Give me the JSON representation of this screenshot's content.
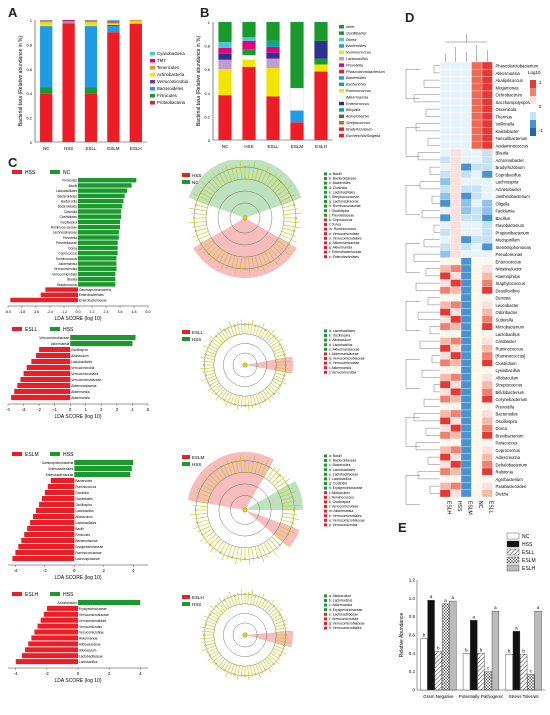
{
  "panel_letters": {
    "a": "A",
    "b": "B",
    "c": "C",
    "d": "D",
    "e": "E"
  },
  "colors": {
    "red": "#ee1c24",
    "green": "#1a9a2c",
    "blue": "#1e9ce6",
    "yellow": "#f2e600",
    "pink_red": "#f4a6a6",
    "pink_green": "#a8d8a8"
  },
  "chart_data": [
    {
      "id": "A",
      "type": "bar",
      "stacked": true,
      "ylabel": "Bacterial taxa (Relative abundance in %)",
      "categories": [
        "NC",
        "HSS",
        "ESLL",
        "ESLM",
        "ESLH"
      ],
      "ylim": [
        0,
        1
      ],
      "yticks": [
        "0",
        "0.2",
        "0.4",
        "0.6",
        "0.8",
        "1"
      ],
      "legend": [
        "Cyanobacteria",
        "TM7",
        "Tenericutes",
        "Actinobacteria",
        "Verrucomicrobia",
        "Bacteroidetes",
        "Firmicutes",
        "Proteobacteria"
      ],
      "series": [
        {
          "name": "Proteobacteria",
          "color": "#ee1c24",
          "values": [
            0.4,
            0.97,
            0.4,
            0.9,
            0.97
          ]
        },
        {
          "name": "Firmicutes",
          "color": "#1a9a2c",
          "values": [
            0.05,
            0.0,
            0.05,
            0.0,
            0.0
          ]
        },
        {
          "name": "Bacteroidetes",
          "color": "#1e9ce6",
          "values": [
            0.5,
            0.01,
            0.5,
            0.05,
            0.0
          ]
        },
        {
          "name": "Verrucomicrobia",
          "color": "#6a3d9a",
          "values": [
            0.0,
            0.0,
            0.0,
            0.01,
            0.0
          ]
        },
        {
          "name": "Actinobacteria",
          "color": "#f2e600",
          "values": [
            0.03,
            0.0,
            0.03,
            0.01,
            0.02
          ]
        },
        {
          "name": "Tenericutes",
          "color": "#f7941d",
          "values": [
            0.01,
            0.01,
            0.01,
            0.01,
            0.01
          ]
        },
        {
          "name": "TM7",
          "color": "#e6007e",
          "values": [
            0.005,
            0.01,
            0.005,
            0.01,
            0.0
          ]
        },
        {
          "name": "Cyanobacteria",
          "color": "#49c8d6",
          "values": [
            0.005,
            0.0,
            0.005,
            0.01,
            0.0
          ]
        }
      ]
    },
    {
      "id": "B",
      "type": "bar",
      "stacked": true,
      "ylabel": "Bacterial taxa (Relative abundance in %)",
      "categories": [
        "NC",
        "HSS",
        "ESLL",
        "ESLM",
        "ESLH"
      ],
      "ylim": [
        0,
        1
      ],
      "yticks": [
        "0",
        "0.2",
        "0.4",
        "0.6",
        "0.8",
        "1"
      ],
      "legend": [
        "other",
        "Oscillibacter",
        "Dorea",
        "Bacteroides",
        "Ruminococcus",
        "Lactobacillus",
        "Prevotella",
        "Phascolarctobacterium",
        "Bacteroides",
        "Escherichia",
        "Ruminococcus",
        "Akkermansia",
        "Enterococcus",
        "Bilophila",
        "Acinetobacter",
        "Streptococcus",
        "Bradyrhizobium",
        "Escherichia/Shigella"
      ],
      "series": [
        {
          "name": "Escherichia/Shigella",
          "color": "#ee1c24",
          "values": [
            0.38,
            0.62,
            0.37,
            0.15,
            0.58
          ]
        },
        {
          "name": "Bacteroides",
          "color": "#1e9ce6",
          "values": [
            0.0,
            0.0,
            0.0,
            0.1,
            0.0
          ]
        },
        {
          "name": "Ruminococcus",
          "color": "#f2e600",
          "values": [
            0.22,
            0.06,
            0.24,
            0.0,
            0.06
          ]
        },
        {
          "name": "Akkermansia",
          "color": "#ffffff",
          "values": [
            0.0,
            0.04,
            0.0,
            0.19,
            0.0
          ]
        },
        {
          "name": "Oscillibacter",
          "color": "#1a9a2c",
          "values": [
            0.0,
            0.05,
            0.0,
            0.0,
            0.05
          ]
        },
        {
          "name": "Lactobacillus",
          "color": "#c39bd3",
          "values": [
            0.08,
            0.0,
            0.08,
            0.0,
            0.0
          ]
        },
        {
          "name": "Enterococcus",
          "color": "#2e3192",
          "values": [
            0.05,
            0.0,
            0.05,
            0.0,
            0.15
          ]
        },
        {
          "name": "Prevotella",
          "color": "#e6007e",
          "values": [
            0.05,
            0.07,
            0.05,
            0.0,
            0.0
          ]
        },
        {
          "name": "Bilophila",
          "color": "#00a99d",
          "values": [
            0.0,
            0.0,
            0.05,
            0.0,
            0.0
          ]
        },
        {
          "name": "Dorea",
          "color": "#49c8d6",
          "values": [
            0.05,
            0.03,
            0.0,
            0.0,
            0.0
          ]
        },
        {
          "name": "other",
          "color": "#1a9a2c",
          "values": [
            0.17,
            0.13,
            0.16,
            0.56,
            0.16
          ]
        }
      ]
    },
    {
      "id": "E",
      "type": "bar",
      "ylabel": "Relative Abundance",
      "categories": [
        "Gram Negative",
        "Potentially Pathogenic",
        "Stress Tolerant"
      ],
      "ylim": [
        0,
        1.2
      ],
      "yticks": [
        "0",
        "0.2",
        "0.4",
        "0.6",
        "0.8",
        "1.0",
        "1.2"
      ],
      "series": [
        {
          "name": "NC",
          "fill": "white",
          "values": [
            0.56,
            0.4,
            0.39
          ],
          "letters": [
            "b",
            "b",
            "b"
          ]
        },
        {
          "name": "HSS",
          "fill": "black",
          "values": [
            0.98,
            0.76,
            0.64
          ],
          "letters": [
            "a",
            "a",
            "a"
          ]
        },
        {
          "name": "ESLL",
          "fill": "hatch",
          "values": [
            0.42,
            0.4,
            0.39
          ],
          "letters": [
            "b",
            "b",
            "b"
          ]
        },
        {
          "name": "ESLM",
          "fill": "cross",
          "values": [
            0.94,
            0.2,
            0.17
          ],
          "letters": [
            "a",
            "c",
            "c"
          ]
        },
        {
          "name": "ESLH",
          "fill": "gray",
          "values": [
            0.97,
            0.86,
            0.86
          ],
          "letters": [
            "a",
            "a",
            "a"
          ]
        }
      ]
    }
  ],
  "heatmap": {
    "legend_title": "Log10",
    "legend_ticks": [
      "1",
      "0",
      "-1"
    ],
    "columns": [
      "ESLH",
      "HSS",
      "ESLM",
      "NC",
      "ESLL"
    ],
    "rows": [
      "Phascolarctobacterium",
      "Akkermansia",
      "Akalipilicoccus",
      "Mogamonas",
      "Ochrobactrum",
      "Saccharopolyspora",
      "Oscenicola",
      "Thermus",
      "Veillonella",
      "Kaistobacter",
      "Faecalibacterium",
      "Acidaminococcus",
      "Blautia",
      "Achromobacter",
      "Bradyrhizobium",
      "Coprobacillus",
      "Lachnospira",
      "Acinetobacter",
      "Janthinobacterium",
      "Oligella",
      "Facklamia",
      "Bacillus",
      "Flavobacterium",
      "Propionibacterium",
      "Mucispirillum",
      "Stenotrophomonas",
      "Pseudomonas",
      "Enterococcus",
      "Nitratireductor",
      "Haemophilus",
      "Staphylococcus",
      "Desulfovibrio",
      "Devosia",
      "Leucobacter",
      "Odoribacter",
      "Sutterella",
      "Microbacterium",
      "Lactobacillus",
      "Citrobacter",
      "Ruminococcus",
      "[Ruminococcus]",
      "Clostridium",
      "Lysinibacillus",
      "Allobaculum",
      "Streptococcus",
      "Bifidobacterium",
      "Corynebacterium",
      "Prevotella",
      "Bacteroides",
      "Oscillospira",
      "Dorea",
      "Brevibacterium",
      "Paracoccus",
      "Coprococcus",
      "Adlercreutzia",
      "Dehalobacterium",
      "Ralstonia",
      "Agrobacterium",
      "Parabacteroides",
      "Dietzia"
    ]
  },
  "lefse": [
    {
      "groups": [
        "HSS",
        "NC"
      ],
      "axis_label": "LDA SCORE (log 10)",
      "ticks": [
        "-6.0",
        "-4.8",
        "-3.6",
        "-2.4",
        "-1.2",
        "0.0",
        "1.2",
        "2.4",
        "3.6",
        "4.8",
        "6.0"
      ],
      "xlim": [
        -6,
        6
      ],
      "pos": [
        5.0,
        4.6,
        4.2,
        4.0,
        3.9,
        3.8,
        3.7,
        3.7,
        3.6,
        3.6,
        3.5,
        3.5,
        3.4,
        3.4,
        3.4,
        3.3,
        3.3,
        3.3,
        3.2,
        3.2,
        3.2
      ],
      "neg": [
        -2.8,
        -3.2,
        -5.8
      ],
      "pos_labels": [
        "Firmicutes",
        "Bacilli",
        "Lactobacillales",
        "Bacteroidetes",
        "Bacteroidia",
        "Bacteroidales",
        "Clostridia",
        "Clostridiales",
        "Oscillospira",
        "Ruminococcaceae",
        "Lachnospiraceae",
        "Prevotella",
        "Prevotellaceae",
        "Dorea",
        "Coprococcus",
        "Ruminococcus",
        "Akkermansia",
        "Verrucomicrobia",
        "Verrucomicrobiae",
        "Blautia",
        "Streptococcus"
      ],
      "neg_labels": [
        "Gammaproteobacteria",
        "Enterobacteriales",
        "Enterobacteriaceae"
      ],
      "clado_legend": [
        "a: Bacilli",
        "b: Bacteroidaceae",
        "c: Bacteroides",
        "d: Clostridia",
        "e: Lactobacillales",
        "f: Streptococcaceae",
        "g: Lachnospiraceae",
        "h: Ruminococcaceae",
        "i: Oscillospira",
        "j: Prevotellaceae",
        "k: Coprococcus",
        "l: Dorea",
        "m: Ruminococcus",
        "n: Verrucomicrobiae",
        "o: Verrucomicrobiales",
        "p: Akkermansiaceae",
        "q: Akkermansia",
        "r: Enterobacteriaceae",
        "s: Enterobacteriales"
      ]
    },
    {
      "groups": [
        "ESLL",
        "HSS"
      ],
      "axis_label": "LDA SCORE (log 10)",
      "ticks": [
        "-4",
        "-3",
        "-2",
        "-1",
        "0",
        "1",
        "2",
        "3",
        "4",
        "5"
      ],
      "xlim": [
        -4,
        5
      ],
      "pos": [
        4.2,
        4.0
      ],
      "neg": [
        -2.0,
        -2.2,
        -2.5,
        -2.8,
        -3.0,
        -3.2,
        -3.4,
        -3.6,
        -3.8
      ],
      "pos_labels": [
        "Verrucomicrobiaceae",
        "Akkermansia"
      ],
      "neg_labels": [
        "Oscillospira",
        "Allobaculum",
        "Lactobacillales",
        "Verrucomicrobia",
        "Verrucomicrobiales",
        "Verrucomicrobiaceae",
        "Akkermansiaceae",
        "Akkermansia",
        "Akkermansia"
      ],
      "clado_legend": [
        "a: Lactobacillales",
        "b: Oscillospira",
        "c: Allobaculum",
        "d: Lactobacillus",
        "e: Akkermansiaceae",
        "f: Akkermansiaceae",
        "g: Verrucomicrobiaceae",
        "h: Verrucomicrobiae",
        "i: Akkermansia",
        "j: Verrucomicrobia"
      ]
    },
    {
      "groups": [
        "ESLM",
        "HSS"
      ],
      "axis_label": "LDA SCORE (log 10)",
      "ticks": [
        "-4",
        "-2",
        "0",
        "2",
        "4"
      ],
      "xlim": [
        -4.5,
        5
      ],
      "pos": [
        4.0,
        3.9,
        3.8
      ],
      "neg": [
        -1.6,
        -1.8,
        -2.0,
        -2.2,
        -2.4,
        -2.6,
        -2.8,
        -3.0,
        -3.2,
        -3.4,
        -3.6,
        -3.8,
        -4.0,
        -4.2
      ],
      "pos_labels": [
        "Gammaproteobacteria",
        "Enterobacteriales",
        "Enterobacteriaceae"
      ],
      "neg_labels": [
        "Bacteroides",
        "Ruminococcus",
        "Clostridia",
        "Clostridiales",
        "Oscillospira",
        "Lactobacillus",
        "Allobaculum",
        "Lactobacillales",
        "Bacilli",
        "Firmicutes",
        "Bacteroidaceae",
        "Erysipelotrichaceae",
        "Ruminococcaceae",
        "Lachnospiraceae"
      ],
      "clado_legend": [
        "a: Bacilli",
        "b: Bacteroidaceae",
        "c: Bacteroides",
        "d: Lactobacillales",
        "e: Lactobacillaceae",
        "f: Lactobacillus",
        "g: Clostridia",
        "h: Erysipelotrichaceae",
        "i: Allobaculum",
        "j: Ruminococcus",
        "k: Oscillospira",
        "l: Verrucomicrobiae",
        "m: Akkermansia",
        "n: Verrucomicrobiales",
        "o: Verrucomicrobiaceae",
        "p: Verrucomicrobia"
      ]
    },
    {
      "groups": [
        "ESLH",
        "HSS"
      ],
      "axis_label": "LDA SCORE (log 10)",
      "ticks": [
        "-4",
        "-2",
        "0",
        "2",
        "4"
      ],
      "xlim": [
        -4.5,
        4.5
      ],
      "pos": [
        4.0
      ],
      "neg": [
        -2.0,
        -2.2,
        -2.4,
        -2.6,
        -2.8,
        -3.0,
        -3.2,
        -3.4,
        -3.6,
        -4.0
      ],
      "pos_labels": [
        "Acinetobacter"
      ],
      "neg_labels": [
        "Erysipelotrichaceae",
        "Verrucomicrobiaceae",
        "Verrucomicrobiales",
        "Verrucomicrobia",
        "Verrucomicrobiae",
        "Akkermansia",
        "Allobaculaceae",
        "Allobaculum",
        "Lactobacillaceae",
        "Lactobacillus"
      ],
      "clado_legend": [
        "a: Allobaculum",
        "b: Lactobacillus",
        "c: Akkermansia",
        "d: Erysipelotrichaceae",
        "e: Lactobacillaceae",
        "f: Verrucomicrobiae",
        "g: Verrucomicrobiaceae",
        "h: Verrucomicrobiales"
      ]
    }
  ]
}
